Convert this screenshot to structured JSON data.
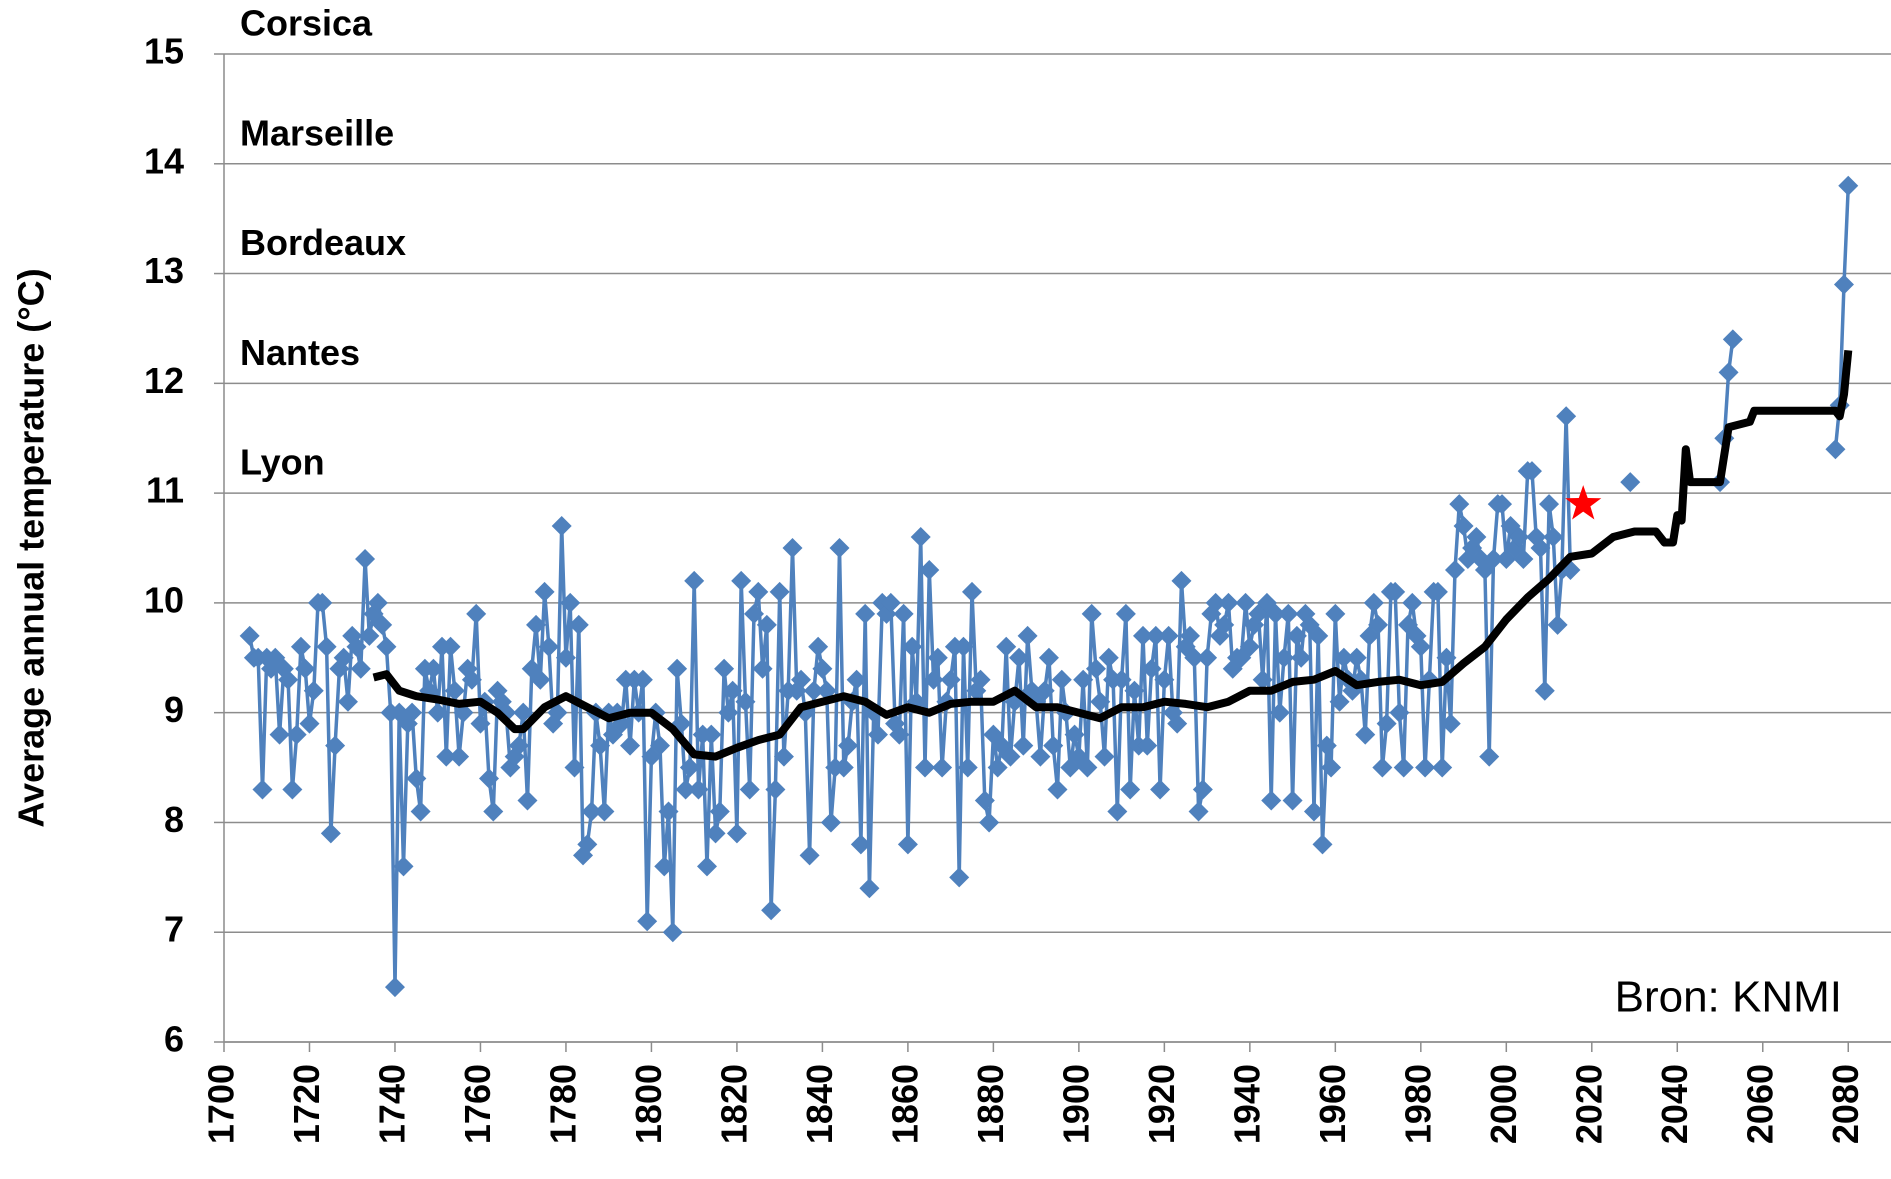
{
  "chart_data": {
    "type": "line",
    "ylabel": "Average annual temperature  (°C)",
    "xlim": [
      1700,
      2090
    ],
    "ylim": [
      6,
      15
    ],
    "xticks": [
      1700,
      1720,
      1740,
      1760,
      1780,
      1800,
      1820,
      1840,
      1860,
      1880,
      1900,
      1920,
      1940,
      1960,
      1980,
      2000,
      2020,
      2040,
      2060,
      2080
    ],
    "yticks": [
      6,
      7,
      8,
      9,
      10,
      11,
      12,
      13,
      14,
      15
    ],
    "grid": true,
    "annotations": [
      {
        "text": "Corsica",
        "y": 15
      },
      {
        "text": "Marseille",
        "y": 14
      },
      {
        "text": "Bordeaux",
        "y": 13
      },
      {
        "text": "Nantes",
        "y": 12
      },
      {
        "text": "Lyon",
        "y": 11
      }
    ],
    "source": "Bron: KNMI",
    "star": {
      "x": 2018,
      "y": 10.9,
      "color": "#ff0000"
    },
    "series": [
      {
        "color": "#4f81bd",
        "marker": "diamond",
        "x": [
          1706,
          1707,
          1708,
          1709,
          1710,
          1711,
          1712,
          1713,
          1714,
          1715,
          1716,
          1717,
          1718,
          1719,
          1720,
          1721,
          1722,
          1723,
          1724,
          1725,
          1726,
          1727,
          1728,
          1729,
          1730,
          1731,
          1732,
          1733,
          1734,
          1735,
          1736,
          1737,
          1738,
          1739,
          1740,
          1741,
          1742,
          1743,
          1744,
          1745,
          1746,
          1747,
          1748,
          1749,
          1750,
          1751,
          1752,
          1753,
          1754,
          1755,
          1756,
          1757,
          1758,
          1759,
          1760,
          1761,
          1762,
          1763,
          1764,
          1765,
          1766,
          1767,
          1768,
          1769,
          1770,
          1771,
          1772,
          1773,
          1774,
          1775,
          1776,
          1777,
          1778,
          1779,
          1780,
          1781,
          1782,
          1783,
          1784,
          1785,
          1786,
          1787,
          1788,
          1789,
          1790,
          1791,
          1792,
          1793,
          1794,
          1795,
          1796,
          1797,
          1798,
          1799,
          1800,
          1801,
          1802,
          1803,
          1804,
          1805,
          1806,
          1807,
          1808,
          1809,
          1810,
          1811,
          1812,
          1813,
          1814,
          1815,
          1816,
          1817,
          1818,
          1819,
          1820,
          1821,
          1822,
          1823,
          1824,
          1825,
          1826,
          1827,
          1828,
          1829,
          1830,
          1831,
          1832,
          1833,
          1834,
          1835,
          1836,
          1837,
          1838,
          1839,
          1840,
          1841,
          1842,
          1843,
          1844,
          1845,
          1846,
          1847,
          1848,
          1849,
          1850,
          1851,
          1852,
          1853,
          1854,
          1855,
          1856,
          1857,
          1858,
          1859,
          1860,
          1861,
          1862,
          1863,
          1864,
          1865,
          1866,
          1867,
          1868,
          1869,
          1870,
          1871,
          1872,
          1873,
          1874,
          1875,
          1876,
          1877,
          1878,
          1879,
          1880,
          1881,
          1882,
          1883,
          1884,
          1885,
          1886,
          1887,
          1888,
          1889,
          1890,
          1891,
          1892,
          1893,
          1894,
          1895,
          1896,
          1897,
          1898,
          1899,
          1900,
          1901,
          1902,
          1903,
          1904,
          1905,
          1906,
          1907,
          1908,
          1909,
          1910,
          1911,
          1912,
          1913,
          1914,
          1915,
          1916,
          1917,
          1918,
          1919,
          1920,
          1921,
          1922,
          1923,
          1924,
          1925,
          1926,
          1927,
          1928,
          1929,
          1930,
          1931,
          1932,
          1933,
          1934,
          1935,
          1936,
          1937,
          1938,
          1939,
          1940,
          1941,
          1942,
          1943,
          1944,
          1945,
          1946,
          1947,
          1948,
          1949,
          1950,
          1951,
          1952,
          1953,
          1954,
          1955,
          1956,
          1957,
          1958,
          1959,
          1960,
          1961,
          1962,
          1963,
          1964,
          1965,
          1966,
          1967,
          1968,
          1969,
          1970,
          1971,
          1972,
          1973,
          1974,
          1975,
          1976,
          1977,
          1978,
          1979,
          1980,
          1981,
          1982,
          1983,
          1984,
          1985,
          1986,
          1987,
          1988,
          1989,
          1990,
          1991,
          1992,
          1993,
          1994,
          1995,
          1996,
          1997,
          1998,
          1999,
          2000,
          2001,
          2002,
          2003,
          2004,
          2005,
          2006,
          2007,
          2008,
          2009,
          2010,
          2011,
          2012,
          2013,
          2014,
          2015,
          null,
          2029,
          null,
          2050,
          2051,
          2052,
          2053,
          null,
          2077,
          2078,
          2079,
          2080
        ],
        "values": [
          9.7,
          9.5,
          9.5,
          8.3,
          9.5,
          9.4,
          9.5,
          8.8,
          9.4,
          9.3,
          8.3,
          8.8,
          9.6,
          9.4,
          8.9,
          9.2,
          10.0,
          10.0,
          9.6,
          7.9,
          8.7,
          9.4,
          9.5,
          9.1,
          9.7,
          9.6,
          9.4,
          10.4,
          9.7,
          9.9,
          10.0,
          9.8,
          9.6,
          9.0,
          6.5,
          9.0,
          7.6,
          8.9,
          9.0,
          8.4,
          8.1,
          9.4,
          9.2,
          9.4,
          9.0,
          9.6,
          8.6,
          9.6,
          9.2,
          8.6,
          9.0,
          9.4,
          9.3,
          9.9,
          8.9,
          9.1,
          8.4,
          8.1,
          9.2,
          9.1,
          9.0,
          8.5,
          8.6,
          8.7,
          9.0,
          8.2,
          9.4,
          9.8,
          9.3,
          10.1,
          9.6,
          8.9,
          9.0,
          10.7,
          9.5,
          10.0,
          8.5,
          9.8,
          7.7,
          7.8,
          8.1,
          9.0,
          8.7,
          8.1,
          9.0,
          8.8,
          9.0,
          8.9,
          9.3,
          8.7,
          9.3,
          9.0,
          9.3,
          7.1,
          8.6,
          9.0,
          8.7,
          7.6,
          8.1,
          7.0,
          9.4,
          8.9,
          8.3,
          8.5,
          10.2,
          8.3,
          8.8,
          7.6,
          8.8,
          7.9,
          8.1,
          9.4,
          9.0,
          9.2,
          7.9,
          10.2,
          9.1,
          8.3,
          9.9,
          10.1,
          9.4,
          9.8,
          7.2,
          8.3,
          10.1,
          8.6,
          9.2,
          10.5,
          9.2,
          9.3,
          9.0,
          7.7,
          9.2,
          9.6,
          9.4,
          9.2,
          8.0,
          8.5,
          10.5,
          8.5,
          8.7,
          9.1,
          9.3,
          7.8,
          9.9,
          7.4,
          9.0,
          8.8,
          10.0,
          9.9,
          10.0,
          8.9,
          8.8,
          9.9,
          7.8,
          9.6,
          9.1,
          10.6,
          8.5,
          10.3,
          9.3,
          9.5,
          8.5,
          9.1,
          9.3,
          9.6,
          7.5,
          9.6,
          8.5,
          10.1,
          9.2,
          9.3,
          8.2,
          8.0,
          8.8,
          8.5,
          8.7,
          9.6,
          8.6,
          9.1,
          9.5,
          8.7,
          9.7,
          9.2,
          9.1,
          8.6,
          9.2,
          9.5,
          8.7,
          8.3,
          9.3,
          9.0,
          8.5,
          8.8,
          8.6,
          9.3,
          8.5,
          9.9,
          9.4,
          9.1,
          8.6,
          9.5,
          9.3,
          8.1,
          9.3,
          9.9,
          8.3,
          9.2,
          8.7,
          9.7,
          8.7,
          9.4,
          9.7,
          8.3,
          9.3,
          9.7,
          9.0,
          8.9,
          10.2,
          9.6,
          9.7,
          9.5,
          8.1,
          8.3,
          9.5,
          9.9,
          10.0,
          9.7,
          9.8,
          10.0,
          9.4,
          9.5,
          9.5,
          10.0,
          9.6,
          9.8,
          9.9,
          9.3,
          10.0,
          8.2,
          9.9,
          9.0,
          9.5,
          9.9,
          8.2,
          9.7,
          9.5,
          9.9,
          9.8,
          8.1,
          9.7,
          7.8,
          8.7,
          8.5,
          9.9,
          9.1,
          9.5,
          9.3,
          9.2,
          9.5,
          9.3,
          8.8,
          9.7,
          10.0,
          9.8,
          8.5,
          8.9,
          10.1,
          10.1,
          9.0,
          8.5,
          9.8,
          10.0,
          9.7,
          9.6,
          8.5,
          9.3,
          10.1,
          10.1,
          8.5,
          9.5,
          8.9,
          10.3,
          10.9,
          10.7,
          10.4,
          10.5,
          10.6,
          10.4,
          10.3,
          8.6,
          10.4,
          10.9,
          10.9,
          10.4,
          10.7,
          10.5,
          10.6,
          10.4,
          11.2,
          11.2,
          10.6,
          10.5,
          9.2,
          10.9,
          10.6,
          9.8,
          10.3,
          11.7,
          10.3,
          null,
          11.1,
          null,
          11.1,
          11.5,
          12.1,
          12.4,
          null,
          11.4,
          11.8,
          12.9,
          13.8
        ]
      },
      {
        "color": "#000000",
        "x": [
          1735,
          1738,
          1741,
          1745,
          1750,
          1755,
          1760,
          1764,
          1768,
          1770,
          1775,
          1780,
          1785,
          1790,
          1795,
          1800,
          1805,
          1810,
          1815,
          1820,
          1825,
          1830,
          1835,
          1840,
          1845,
          1850,
          1855,
          1860,
          1865,
          1870,
          1875,
          1880,
          1885,
          1890,
          1895,
          1900,
          1905,
          1910,
          1915,
          1920,
          1925,
          1930,
          1935,
          1940,
          1945,
          1950,
          1955,
          1960,
          1965,
          1970,
          1975,
          1980,
          1985,
          1990,
          1995,
          2000,
          2005,
          2010,
          2015,
          2020,
          2025,
          2030,
          2035,
          2037,
          2039,
          2040,
          2041,
          2042,
          2043,
          2050,
          2052,
          2057,
          2058,
          2077,
          2078,
          2079,
          2080
        ],
        "values": [
          9.32,
          9.35,
          9.2,
          9.15,
          9.12,
          9.08,
          9.1,
          9.0,
          8.85,
          8.85,
          9.05,
          9.15,
          9.05,
          8.95,
          9.0,
          9.0,
          8.85,
          8.62,
          8.6,
          8.68,
          8.75,
          8.8,
          9.05,
          9.1,
          9.15,
          9.1,
          8.98,
          9.05,
          9.0,
          9.08,
          9.1,
          9.1,
          9.2,
          9.05,
          9.05,
          9.0,
          8.95,
          9.05,
          9.05,
          9.1,
          9.08,
          9.05,
          9.1,
          9.2,
          9.2,
          9.28,
          9.3,
          9.38,
          9.25,
          9.28,
          9.3,
          9.25,
          9.28,
          9.45,
          9.6,
          9.85,
          10.05,
          10.22,
          10.42,
          10.45,
          10.6,
          10.65,
          10.65,
          10.55,
          10.55,
          10.8,
          10.75,
          11.4,
          11.1,
          11.1,
          11.6,
          11.65,
          11.75,
          11.75,
          11.7,
          11.9,
          12.3
        ]
      }
    ]
  }
}
